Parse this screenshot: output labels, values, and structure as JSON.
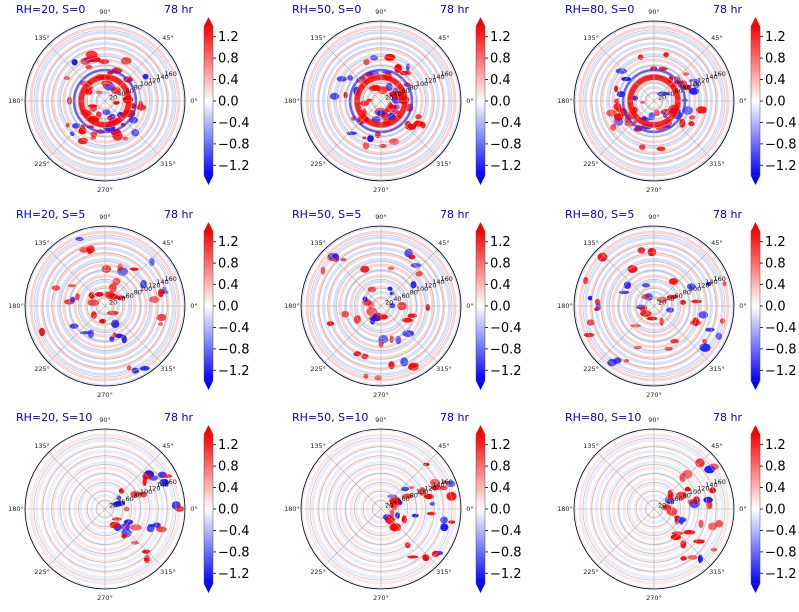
{
  "colors": {
    "negative": "#0000ff",
    "zero": "#ffffff",
    "positive": "#ff0000",
    "title": "#0000cc",
    "grid": "#b0b0b0"
  },
  "chart_data": [
    {
      "type": "heatmap",
      "projection": "polar",
      "title_left": "RH=20, S=0",
      "title_right": "78 hr",
      "angular_tick_labels": [
        "0°",
        "45°",
        "90°",
        "135°",
        "180°",
        "225°",
        "270°",
        "315°"
      ],
      "radial_tick_labels": [
        "20",
        "40",
        "60",
        "80",
        "100",
        "120",
        "140",
        "160"
      ],
      "radial_ticks": [
        20,
        40,
        60,
        80,
        100,
        120,
        140,
        160
      ],
      "rlim": [
        0,
        180
      ],
      "colorbar": {
        "ticks": [
          -1.2,
          -0.8,
          -0.4,
          0.0,
          0.4,
          0.8,
          1.2
        ],
        "labels": [
          "−1.2",
          "−0.8",
          "−0.4",
          "0.0",
          "0.4",
          "0.8",
          "1.2"
        ],
        "range": [
          -1.4,
          1.4
        ],
        "extend": "both",
        "cmap": "bwr"
      }
    },
    {
      "type": "heatmap",
      "projection": "polar",
      "title_left": "RH=50, S=0",
      "title_right": "78 hr",
      "angular_tick_labels": [
        "0°",
        "45°",
        "90°",
        "135°",
        "180°",
        "225°",
        "270°",
        "315°"
      ],
      "radial_tick_labels": [
        "20",
        "40",
        "60",
        "80",
        "100",
        "120",
        "140",
        "160"
      ],
      "radial_ticks": [
        20,
        40,
        60,
        80,
        100,
        120,
        140,
        160
      ],
      "rlim": [
        0,
        180
      ],
      "colorbar": {
        "ticks": [
          -1.2,
          -0.8,
          -0.4,
          0.0,
          0.4,
          0.8,
          1.2
        ],
        "labels": [
          "−1.2",
          "−0.8",
          "−0.4",
          "0.0",
          "0.4",
          "0.8",
          "1.2"
        ],
        "range": [
          -1.4,
          1.4
        ],
        "extend": "both",
        "cmap": "bwr"
      }
    },
    {
      "type": "heatmap",
      "projection": "polar",
      "title_left": "RH=80, S=0",
      "title_right": "78 hr",
      "angular_tick_labels": [
        "0°",
        "45°",
        "90°",
        "135°",
        "180°",
        "225°",
        "270°",
        "315°"
      ],
      "radial_tick_labels": [
        "20",
        "40",
        "60",
        "80",
        "100",
        "120",
        "140",
        "160"
      ],
      "radial_ticks": [
        20,
        40,
        60,
        80,
        100,
        120,
        140,
        160
      ],
      "rlim": [
        0,
        180
      ],
      "colorbar": {
        "ticks": [
          -1.2,
          -0.8,
          -0.4,
          0.0,
          0.4,
          0.8,
          1.2
        ],
        "labels": [
          "−1.2",
          "−0.8",
          "−0.4",
          "0.0",
          "0.4",
          "0.8",
          "1.2"
        ],
        "range": [
          -1.4,
          1.4
        ],
        "extend": "both",
        "cmap": "bwr"
      }
    },
    {
      "type": "heatmap",
      "projection": "polar",
      "title_left": "RH=20, S=5",
      "title_right": "78 hr",
      "angular_tick_labels": [
        "0°",
        "45°",
        "90°",
        "135°",
        "180°",
        "225°",
        "270°",
        "315°"
      ],
      "radial_tick_labels": [
        "20",
        "40",
        "60",
        "80",
        "100",
        "120",
        "140",
        "160"
      ],
      "radial_ticks": [
        20,
        40,
        60,
        80,
        100,
        120,
        140,
        160
      ],
      "rlim": [
        0,
        180
      ],
      "colorbar": {
        "ticks": [
          -1.2,
          -0.8,
          -0.4,
          0.0,
          0.4,
          0.8,
          1.2
        ],
        "labels": [
          "−1.2",
          "−0.8",
          "−0.4",
          "0.0",
          "0.4",
          "0.8",
          "1.2"
        ],
        "range": [
          -1.4,
          1.4
        ],
        "extend": "both",
        "cmap": "bwr"
      }
    },
    {
      "type": "heatmap",
      "projection": "polar",
      "title_left": "RH=50, S=5",
      "title_right": "78 hr",
      "angular_tick_labels": [
        "0°",
        "45°",
        "90°",
        "135°",
        "180°",
        "225°",
        "270°",
        "315°"
      ],
      "radial_tick_labels": [
        "20",
        "40",
        "60",
        "80",
        "100",
        "120",
        "140",
        "160"
      ],
      "radial_ticks": [
        20,
        40,
        60,
        80,
        100,
        120,
        140,
        160
      ],
      "rlim": [
        0,
        180
      ],
      "colorbar": {
        "ticks": [
          -1.2,
          -0.8,
          -0.4,
          0.0,
          0.4,
          0.8,
          1.2
        ],
        "labels": [
          "−1.2",
          "−0.8",
          "−0.4",
          "0.0",
          "0.4",
          "0.8",
          "1.2"
        ],
        "range": [
          -1.4,
          1.4
        ],
        "extend": "both",
        "cmap": "bwr"
      }
    },
    {
      "type": "heatmap",
      "projection": "polar",
      "title_left": "RH=80, S=5",
      "title_right": "78 hr",
      "angular_tick_labels": [
        "0°",
        "45°",
        "90°",
        "135°",
        "180°",
        "225°",
        "270°",
        "315°"
      ],
      "radial_tick_labels": [
        "20",
        "40",
        "60",
        "80",
        "100",
        "120",
        "140",
        "160"
      ],
      "radial_ticks": [
        20,
        40,
        60,
        80,
        100,
        120,
        140,
        160
      ],
      "rlim": [
        0,
        180
      ],
      "colorbar": {
        "ticks": [
          -1.2,
          -0.8,
          -0.4,
          0.0,
          0.4,
          0.8,
          1.2
        ],
        "labels": [
          "−1.2",
          "−0.8",
          "−0.4",
          "0.0",
          "0.4",
          "0.8",
          "1.2"
        ],
        "range": [
          -1.4,
          1.4
        ],
        "extend": "both",
        "cmap": "bwr"
      }
    },
    {
      "type": "heatmap",
      "projection": "polar",
      "title_left": "RH=20, S=10",
      "title_right": "78 hr",
      "angular_tick_labels": [
        "0°",
        "45°",
        "90°",
        "135°",
        "180°",
        "225°",
        "270°",
        "315°"
      ],
      "radial_tick_labels": [
        "20",
        "40",
        "60",
        "80",
        "100",
        "120",
        "140",
        "160"
      ],
      "radial_ticks": [
        20,
        40,
        60,
        80,
        100,
        120,
        140,
        160
      ],
      "rlim": [
        0,
        180
      ],
      "colorbar": {
        "ticks": [
          -1.2,
          -0.8,
          -0.4,
          0.0,
          0.4,
          0.8,
          1.2
        ],
        "labels": [
          "−1.2",
          "−0.8",
          "−0.4",
          "0.0",
          "0.4",
          "0.8",
          "1.2"
        ],
        "range": [
          -1.4,
          1.4
        ],
        "extend": "both",
        "cmap": "bwr"
      }
    },
    {
      "type": "heatmap",
      "projection": "polar",
      "title_left": "RH=50, S=10",
      "title_right": "78 hr",
      "angular_tick_labels": [
        "0°",
        "45°",
        "90°",
        "135°",
        "180°",
        "225°",
        "270°",
        "315°"
      ],
      "radial_tick_labels": [
        "20",
        "40",
        "60",
        "80",
        "100",
        "120",
        "140",
        "160"
      ],
      "radial_ticks": [
        20,
        40,
        60,
        80,
        100,
        120,
        140,
        160
      ],
      "rlim": [
        0,
        180
      ],
      "colorbar": {
        "ticks": [
          -1.2,
          -0.8,
          -0.4,
          0.0,
          0.4,
          0.8,
          1.2
        ],
        "labels": [
          "−1.2",
          "−0.8",
          "−0.4",
          "0.0",
          "0.4",
          "0.8",
          "1.2"
        ],
        "range": [
          -1.4,
          1.4
        ],
        "extend": "both",
        "cmap": "bwr"
      }
    },
    {
      "type": "heatmap",
      "projection": "polar",
      "title_left": "RH=80, S=10",
      "title_right": "78 hr",
      "angular_tick_labels": [
        "0°",
        "45°",
        "90°",
        "135°",
        "180°",
        "225°",
        "270°",
        "315°"
      ],
      "radial_tick_labels": [
        "20",
        "40",
        "60",
        "80",
        "100",
        "120",
        "140",
        "160"
      ],
      "radial_ticks": [
        20,
        40,
        60,
        80,
        100,
        120,
        140,
        160
      ],
      "rlim": [
        0,
        180
      ],
      "colorbar": {
        "ticks": [
          -1.2,
          -0.8,
          -0.4,
          0.0,
          0.4,
          0.8,
          1.2
        ],
        "labels": [
          "−1.2",
          "−0.8",
          "−0.4",
          "0.0",
          "0.4",
          "0.8",
          "1.2"
        ],
        "range": [
          -1.4,
          1.4
        ],
        "extend": "both",
        "cmap": "bwr"
      }
    }
  ]
}
